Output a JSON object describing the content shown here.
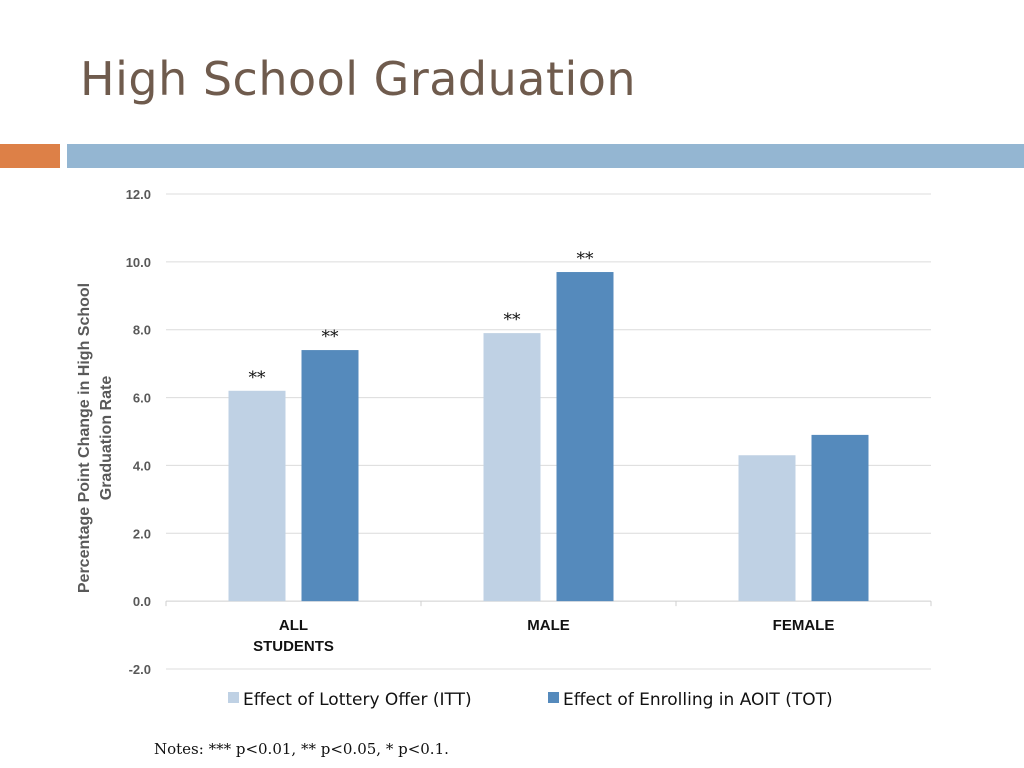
{
  "slide": {
    "title": "High School Graduation",
    "notes": "Notes: *** p<0.01, ** p<0.05, * p<0.1."
  },
  "colors": {
    "title": "#6f5b4d",
    "accent_orange": "#dd8047",
    "accent_blue": "#94b6d2",
    "series_itt": "#bfd1e4",
    "series_tot": "#558abc"
  },
  "chart_data": {
    "type": "bar",
    "title": "",
    "ylabel": "Percentage Point Change in High School Graduation Rate",
    "ylabel_lines": [
      "Percentage Point Change in High School",
      "Graduation Rate"
    ],
    "xlabel": "",
    "categories": [
      "ALL STUDENTS",
      "MALE",
      "FEMALE"
    ],
    "category_lines": [
      [
        "ALL",
        "STUDENTS"
      ],
      [
        "MALE"
      ],
      [
        "FEMALE"
      ]
    ],
    "ylim": [
      -2.0,
      12.0
    ],
    "yticks": [
      "-2.0",
      "0.0",
      "2.0",
      "4.0",
      "6.0",
      "8.0",
      "10.0",
      "12.0"
    ],
    "grid": true,
    "legend_position": "bottom",
    "series": [
      {
        "name": "Effect of Lottery Offer (ITT)",
        "color": "#bfd1e4",
        "values": [
          6.2,
          7.9,
          4.3
        ],
        "annotations": [
          "**",
          "**",
          ""
        ]
      },
      {
        "name": "Effect of Enrolling in AOIT (TOT)",
        "color": "#558abc",
        "values": [
          7.4,
          9.7,
          4.9
        ],
        "annotations": [
          "**",
          "**",
          ""
        ]
      }
    ]
  }
}
